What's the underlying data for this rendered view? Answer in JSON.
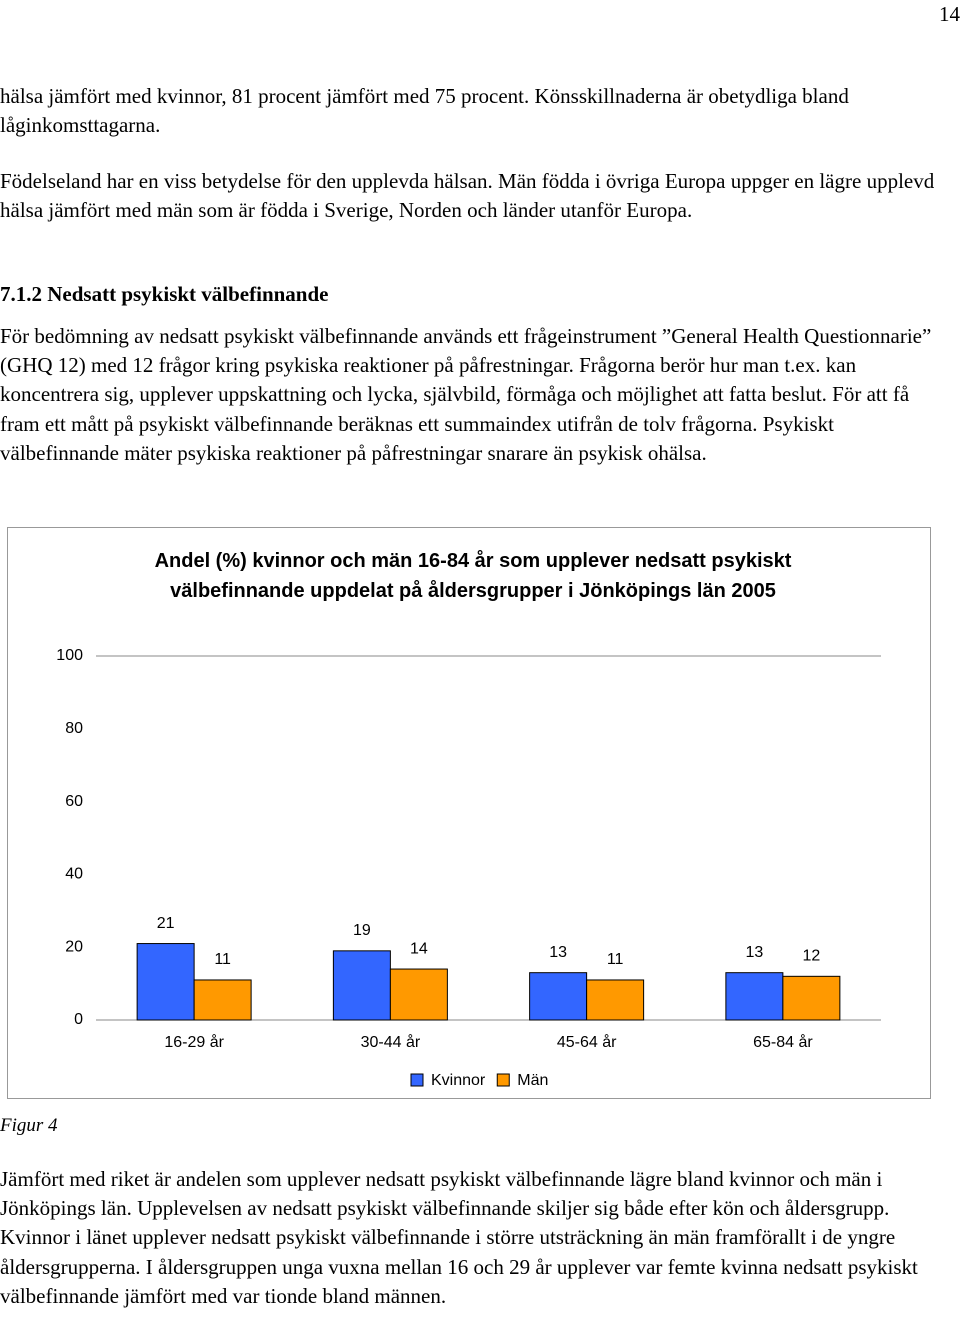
{
  "page_number": "14",
  "paragraphs": [
    "hälsa jämfört med kvinnor, 81 procent jämfört med 75 procent. Könsskillnaderna är obetydliga bland låginkomsttagarna.",
    "Födelseland har en viss betydelse för den upplevda hälsan. Män födda i övriga Europa uppger en lägre upplevd hälsa jämfört med män som är födda i Sverige, Norden och länder utanför Europa."
  ],
  "heading": "7.1.2 Nedsatt psykiskt välbefinnande",
  "body": "För bedömning av nedsatt psykiskt välbefinnande används ett frågeinstrument ”General Health Questionnarie” (GHQ 12) med 12 frågor kring psykiska reaktioner på påfrestningar. Frågorna berör hur man t.ex. kan koncentrera sig, upplever uppskattning och lycka, självbild, förmåga och möjlighet att fatta beslut. För att få fram ett mått på psykiskt välbefinnande beräknas ett summaindex utifrån de tolv frågorna. Psykiskt välbefinnande mäter psykiska reaktioner på påfrestningar snarare än psykisk ohälsa.",
  "chart_data": {
    "type": "bar",
    "title": "Andel (%) kvinnor och män 16-84 år som upplever nedsatt psykiskt välbefinnande uppdelat på åldersgrupper i Jönköpings län 2005",
    "categories": [
      "16-29 år",
      "30-44 år",
      "45-64 år",
      "65-84 år"
    ],
    "series": [
      {
        "name": "Kvinnor",
        "color": "#3366ff",
        "values": [
          21,
          19,
          13,
          13
        ]
      },
      {
        "name": "Män",
        "color": "#ff9900",
        "values": [
          11,
          14,
          11,
          12
        ]
      }
    ],
    "ylim": [
      0,
      100
    ],
    "yticks": [
      0,
      20,
      40,
      60,
      80,
      100
    ],
    "grid": false,
    "legend": "bottom"
  },
  "figure_caption": "Figur 4",
  "closing": "Jämfört med riket är andelen som upplever nedsatt psykiskt välbefinnande lägre bland kvinnor och män i Jönköpings län. Upplevelsen av nedsatt psykiskt välbefinnande skiljer sig både efter kön och åldersgrupp. Kvinnor i länet upplever nedsatt psykiskt välbefinnande i större utsträckning än män framförallt i de yngre åldersgrupperna. I åldersgruppen unga vuxna mellan 16 och 29 år upplever var femte kvinna nedsatt psykiskt välbefinnande jämfört med var tionde bland männen."
}
